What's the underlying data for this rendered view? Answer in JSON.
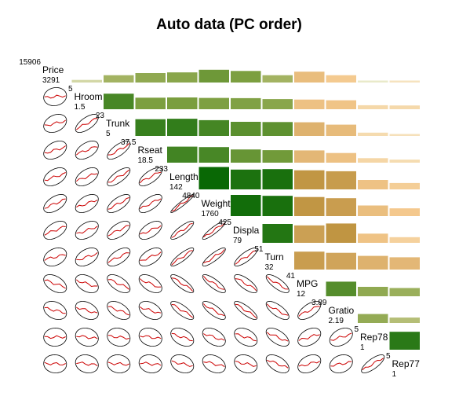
{
  "chart_data": {
    "type": "corrgram",
    "title": "Auto data (PC order)",
    "lower_panel": "ellipse with loess smooth",
    "upper_panel": "shaded bars (green = positive, tan = negative)",
    "variables": [
      {
        "name": "Price",
        "max": "15906",
        "min": "3291"
      },
      {
        "name": "Hroom",
        "max": "5",
        "min": "1.5"
      },
      {
        "name": "Trunk",
        "max": "23",
        "min": "5"
      },
      {
        "name": "Rseat",
        "max": "37.5",
        "min": "18.5"
      },
      {
        "name": "Length",
        "max": "233",
        "min": "142"
      },
      {
        "name": "Weight",
        "max": "4840",
        "min": "1760"
      },
      {
        "name": "Displa",
        "max": "425",
        "min": "79"
      },
      {
        "name": "Turn",
        "max": "51",
        "min": "32"
      },
      {
        "name": "MPG",
        "max": "41",
        "min": "12"
      },
      {
        "name": "Gratio",
        "max": "3.89",
        "min": "2.19"
      },
      {
        "name": "Rep78",
        "max": "5",
        "min": "1"
      },
      {
        "name": "Rep77",
        "max": "5",
        "min": "1"
      }
    ],
    "correlations": [
      [
        1.0,
        0.11,
        0.31,
        0.4,
        0.43,
        0.54,
        0.49,
        0.31,
        -0.46,
        -0.31,
        0.02,
        -0.05
      ],
      [
        0.11,
        1.0,
        0.66,
        0.49,
        0.5,
        0.48,
        0.47,
        0.43,
        -0.41,
        -0.38,
        -0.17,
        -0.16
      ],
      [
        0.31,
        0.66,
        1.0,
        0.71,
        0.73,
        0.67,
        0.6,
        0.59,
        -0.58,
        -0.48,
        -0.14,
        -0.08
      ],
      [
        0.4,
        0.49,
        0.71,
        1.0,
        0.68,
        0.66,
        0.56,
        0.53,
        -0.52,
        -0.41,
        -0.19,
        -0.13
      ],
      [
        0.43,
        0.5,
        0.73,
        0.68,
        1.0,
        0.95,
        0.84,
        0.86,
        -0.81,
        -0.77,
        -0.4,
        -0.27
      ],
      [
        0.54,
        0.48,
        0.67,
        0.66,
        0.95,
        1.0,
        0.9,
        0.86,
        -0.81,
        -0.76,
        -0.45,
        -0.33
      ],
      [
        0.49,
        0.47,
        0.6,
        0.56,
        0.84,
        0.9,
        1.0,
        0.8,
        -0.74,
        -0.82,
        -0.39,
        -0.24
      ],
      [
        0.31,
        0.43,
        0.59,
        0.53,
        0.86,
        0.86,
        0.8,
        1.0,
        -0.76,
        -0.71,
        -0.58,
        -0.52
      ],
      [
        -0.46,
        -0.41,
        -0.58,
        -0.52,
        -0.81,
        -0.81,
        -0.74,
        -0.76,
        1.0,
        0.62,
        0.4,
        0.35
      ],
      [
        -0.31,
        -0.38,
        -0.48,
        -0.41,
        -0.77,
        -0.76,
        -0.82,
        -0.71,
        0.62,
        1.0,
        0.38,
        0.23
      ],
      [
        0.02,
        -0.17,
        -0.14,
        -0.19,
        -0.4,
        -0.45,
        -0.39,
        -0.58,
        0.4,
        0.38,
        1.0,
        0.76
      ],
      [
        -0.05,
        -0.16,
        -0.08,
        -0.13,
        -0.27,
        -0.33,
        -0.24,
        -0.52,
        0.35,
        0.23,
        0.76,
        1.0
      ]
    ],
    "colors": {
      "positive": "#006400",
      "negative": "#a67c1a",
      "ellipse": "#000000",
      "smooth": "#cc0000",
      "background": "#ffffff"
    }
  }
}
